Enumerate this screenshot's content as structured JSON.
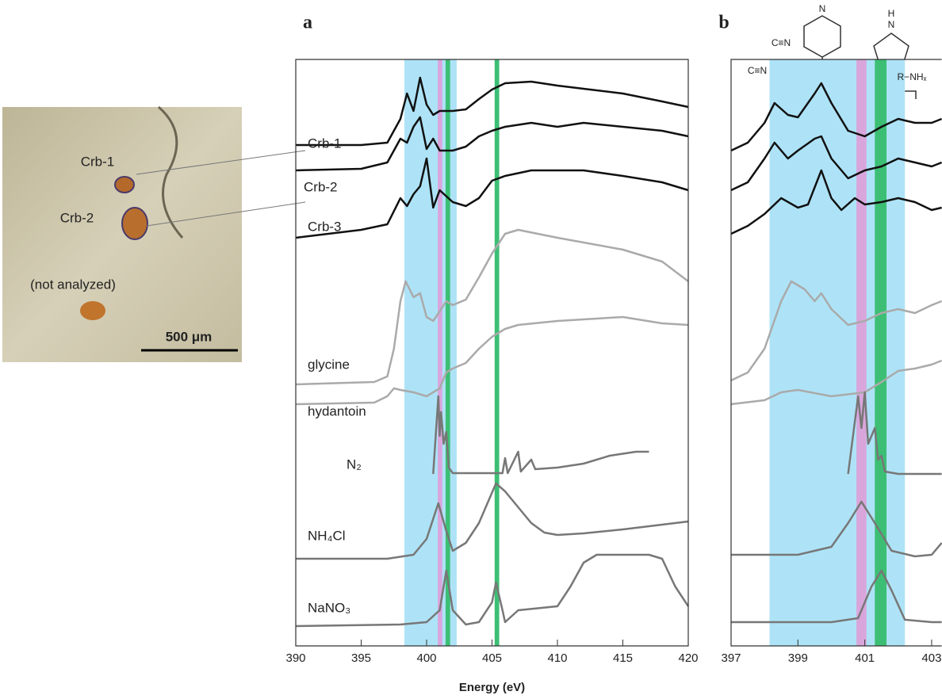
{
  "photo": {
    "labels": [
      "Crb-1",
      "Crb-2",
      "(not analyzed)"
    ],
    "scale_bar": "500 μm"
  },
  "chart_data": [
    {
      "type": "line",
      "title": "a",
      "x_label": "Energy (eV)",
      "xlim": [
        390,
        420
      ],
      "xticks": [
        390,
        395,
        400,
        405,
        410,
        415,
        420
      ],
      "ylim": [
        0,
        740
      ],
      "bands": [
        {
          "start": 398.3,
          "end": 402.3,
          "color": "#aee3f7"
        },
        {
          "start": 400.85,
          "end": 401.2,
          "color": "#d9a6dc"
        },
        {
          "start": 401.45,
          "end": 401.8,
          "color": "#3cbf74"
        },
        {
          "start": 405.2,
          "end": 405.55,
          "color": "#3cbf74"
        }
      ],
      "series": [
        {
          "name": "Crb-1",
          "color": "#111111",
          "x": [
            390,
            395,
            397,
            398,
            398.5,
            399,
            399.5,
            400,
            400.5,
            401,
            402,
            403,
            404,
            405,
            406,
            408,
            410,
            412,
            415,
            418,
            420
          ],
          "values": [
            632,
            632,
            635,
            665,
            697,
            675,
            717,
            683,
            670,
            675,
            675,
            677,
            690,
            702,
            710,
            712,
            707,
            703,
            697,
            687,
            680
          ]
        },
        {
          "name": "Crb-2",
          "color": "#111111",
          "x": [
            390,
            395,
            397,
            398,
            398.5,
            399,
            399.5,
            400,
            400.5,
            401,
            402,
            403,
            404,
            405,
            406,
            408,
            410,
            412,
            415,
            418,
            420
          ],
          "values": [
            600,
            602,
            610,
            640,
            635,
            655,
            667,
            627,
            640,
            625,
            625,
            630,
            643,
            650,
            655,
            660,
            655,
            660,
            655,
            650,
            643
          ]
        },
        {
          "name": "Crb-3",
          "color": "#111111",
          "x": [
            390,
            395,
            397,
            398,
            398.5,
            399,
            399.5,
            400,
            400.5,
            401,
            402,
            403,
            404,
            405,
            406,
            408,
            410,
            412,
            415,
            418,
            420
          ],
          "values": [
            515,
            525,
            532,
            565,
            555,
            570,
            580,
            615,
            553,
            575,
            560,
            555,
            565,
            587,
            593,
            600,
            600,
            600,
            593,
            585,
            575
          ]
        },
        {
          "name": "glycine",
          "color": "#aaaaaa",
          "x": [
            390,
            396,
            397,
            397.5,
            398,
            398.4,
            399,
            399.5,
            400,
            400.5,
            401,
            401.5,
            402,
            403,
            404,
            405,
            406,
            407,
            410,
            415,
            418,
            420
          ],
          "values": [
            330,
            333,
            340,
            375,
            435,
            460,
            440,
            445,
            415,
            410,
            422,
            435,
            430,
            437,
            465,
            495,
            520,
            525,
            515,
            500,
            485,
            460
          ]
        },
        {
          "name": "hydantoin",
          "color": "#aaaaaa",
          "x": [
            390,
            396,
            397,
            397.5,
            398,
            399,
            400,
            401,
            401.5,
            402,
            403,
            404,
            405,
            406,
            407,
            410,
            415,
            418,
            420
          ],
          "values": [
            305,
            307,
            315,
            325,
            323,
            320,
            315,
            325,
            345,
            350,
            357,
            375,
            390,
            400,
            405,
            410,
            415,
            407,
            405
          ]
        },
        {
          "name": "N₂",
          "color": "#777777",
          "x": [
            400.5,
            400.9,
            401,
            401.1,
            401.3,
            401.5,
            401.7,
            402,
            405,
            405.8,
            406,
            406.2,
            407,
            407.2,
            408,
            408.3,
            410,
            412,
            414,
            416,
            417
          ],
          "values": [
            217,
            315,
            265,
            295,
            255,
            270,
            225,
            218,
            218,
            218,
            237,
            218,
            245,
            220,
            235,
            223,
            225,
            230,
            240,
            245,
            245
          ]
        },
        {
          "name": "NH₄Cl",
          "color": "#777777",
          "x": [
            390,
            397,
            399,
            400,
            400.9,
            401.5,
            402,
            403,
            404,
            405.3,
            406,
            407,
            408,
            409,
            410,
            412,
            415,
            418,
            420
          ],
          "values": [
            110,
            110,
            115,
            135,
            180,
            145,
            120,
            130,
            155,
            205,
            195,
            175,
            155,
            143,
            140,
            142,
            147,
            153,
            157
          ]
        },
        {
          "name": "NaNO₃",
          "color": "#777777",
          "x": [
            390,
            398,
            400,
            401,
            401.5,
            402,
            403,
            404,
            405,
            405.3,
            405.8,
            406,
            407,
            410,
            411,
            412,
            413,
            415,
            417,
            418,
            419,
            420
          ],
          "values": [
            25,
            27,
            30,
            45,
            95,
            45,
            27,
            30,
            55,
            80,
            45,
            30,
            45,
            50,
            75,
            105,
            115,
            115,
            115,
            110,
            75,
            50
          ]
        }
      ]
    },
    {
      "type": "line",
      "title": "b",
      "xlim": [
        397,
        403.3
      ],
      "xticks": [
        397,
        399,
        401,
        403
      ],
      "ylim": [
        0,
        740
      ],
      "annotations": [
        "C≡N",
        "C≡N",
        "N",
        "H",
        "N",
        "R−NHₓ"
      ],
      "bands": [
        {
          "start": 398.15,
          "end": 402.2,
          "color": "#aee3f7"
        },
        {
          "start": 400.75,
          "end": 401.05,
          "color": "#d9a6dc"
        },
        {
          "start": 401.3,
          "end": 401.65,
          "color": "#3cbf74"
        }
      ],
      "series": [
        {
          "color": "#111111",
          "x": [
            397,
            397.5,
            398,
            398.3,
            398.7,
            399,
            399.5,
            399.7,
            400,
            400.5,
            401,
            401.5,
            402,
            402.5,
            403,
            403.3
          ],
          "values": [
            625,
            635,
            660,
            685,
            670,
            667,
            697,
            710,
            685,
            650,
            643,
            655,
            665,
            660,
            660,
            665
          ]
        },
        {
          "color": "#111111",
          "x": [
            397,
            397.5,
            398,
            398.3,
            398.7,
            399,
            399.5,
            399.7,
            400,
            400.5,
            401,
            401.5,
            402,
            402.5,
            403,
            403.3
          ],
          "values": [
            575,
            585,
            615,
            635,
            615,
            625,
            640,
            643,
            615,
            590,
            600,
            605,
            615,
            610,
            605,
            610
          ]
        },
        {
          "color": "#111111",
          "x": [
            397,
            397.5,
            398,
            398.5,
            399,
            399.3,
            399.7,
            400,
            400.3,
            400.7,
            401,
            401.5,
            402,
            402.5,
            403,
            403.3
          ],
          "values": [
            520,
            530,
            545,
            565,
            553,
            557,
            600,
            565,
            550,
            565,
            557,
            560,
            565,
            560,
            550,
            553
          ]
        },
        {
          "color": "#aaaaaa",
          "x": [
            397,
            397.5,
            398,
            398.5,
            398.8,
            399.2,
            399.5,
            399.7,
            400,
            400.5,
            401,
            401.5,
            402,
            402.5,
            403,
            403.3
          ],
          "values": [
            335,
            345,
            375,
            435,
            460,
            450,
            435,
            445,
            425,
            405,
            410,
            420,
            425,
            420,
            430,
            435
          ]
        },
        {
          "color": "#aaaaaa",
          "x": [
            397,
            398,
            398.5,
            399,
            400,
            401,
            401.5,
            402,
            402.5,
            403,
            403.3
          ],
          "values": [
            305,
            310,
            320,
            323,
            315,
            320,
            333,
            347,
            350,
            355,
            360
          ]
        },
        {
          "color": "#777777",
          "x": [
            400.5,
            400.8,
            400.9,
            401,
            401.1,
            401.3,
            401.4,
            401.5,
            401.6,
            402,
            403,
            403.3
          ],
          "values": [
            217,
            315,
            275,
            320,
            255,
            275,
            235,
            240,
            220,
            217,
            217,
            217
          ]
        },
        {
          "color": "#777777",
          "x": [
            397,
            399,
            400,
            400.5,
            400.9,
            401.3,
            401.8,
            402.5,
            403,
            403.3
          ],
          "values": [
            115,
            115,
            125,
            155,
            182,
            155,
            120,
            113,
            115,
            130
          ]
        },
        {
          "color": "#777777",
          "x": [
            397,
            399,
            400,
            400.8,
            401.2,
            401.5,
            401.8,
            402.2,
            403,
            403.3
          ],
          "values": [
            30,
            30,
            30,
            35,
            75,
            95,
            70,
            33,
            30,
            30
          ]
        }
      ]
    }
  ]
}
